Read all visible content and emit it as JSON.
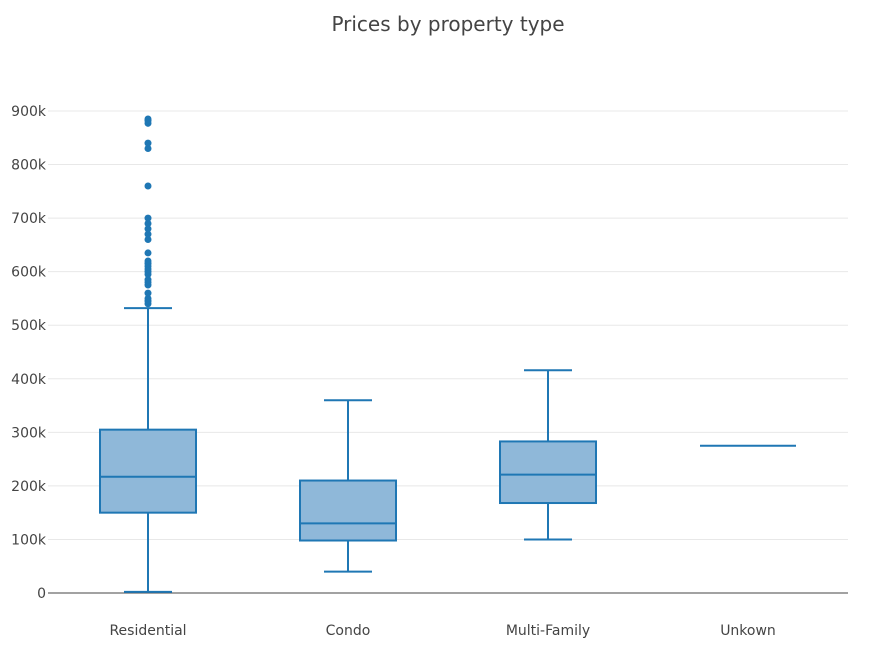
{
  "chart_data": {
    "type": "box",
    "title": "Prices by property type",
    "xlabel": "",
    "ylabel": "",
    "ylim": [
      0,
      950000
    ],
    "grid": true,
    "y_ticks": [
      0,
      100000,
      200000,
      300000,
      400000,
      500000,
      600000,
      700000,
      800000,
      900000
    ],
    "y_tick_labels": [
      "0",
      "100k",
      "200k",
      "300k",
      "400k",
      "500k",
      "600k",
      "700k",
      "800k",
      "900k"
    ],
    "categories": [
      "Residential",
      "Condo",
      "Multi-Family",
      "Unkown"
    ],
    "color": "#1f77b4",
    "fill_color": "#8fb8d9",
    "boxes": [
      {
        "category": "Residential",
        "lower_whisker": 2000,
        "q1": 150000,
        "median": 217000,
        "q3": 305000,
        "upper_whisker": 532000,
        "outliers": [
          540000,
          545000,
          550000,
          560000,
          575000,
          580000,
          585000,
          595000,
          600000,
          605000,
          610000,
          615000,
          620000,
          635000,
          660000,
          670000,
          680000,
          690000,
          700000,
          760000,
          830000,
          840000,
          877000,
          882000,
          885000
        ]
      },
      {
        "category": "Condo",
        "lower_whisker": 40000,
        "q1": 98000,
        "median": 130000,
        "q3": 210000,
        "upper_whisker": 360000,
        "outliers": []
      },
      {
        "category": "Multi-Family",
        "lower_whisker": 100000,
        "q1": 168000,
        "median": 221000,
        "q3": 283000,
        "upper_whisker": 416000,
        "outliers": []
      },
      {
        "category": "Unkown",
        "lower_whisker": 275000,
        "q1": 275000,
        "median": 275000,
        "q3": 275000,
        "upper_whisker": 275000,
        "outliers": []
      }
    ]
  }
}
